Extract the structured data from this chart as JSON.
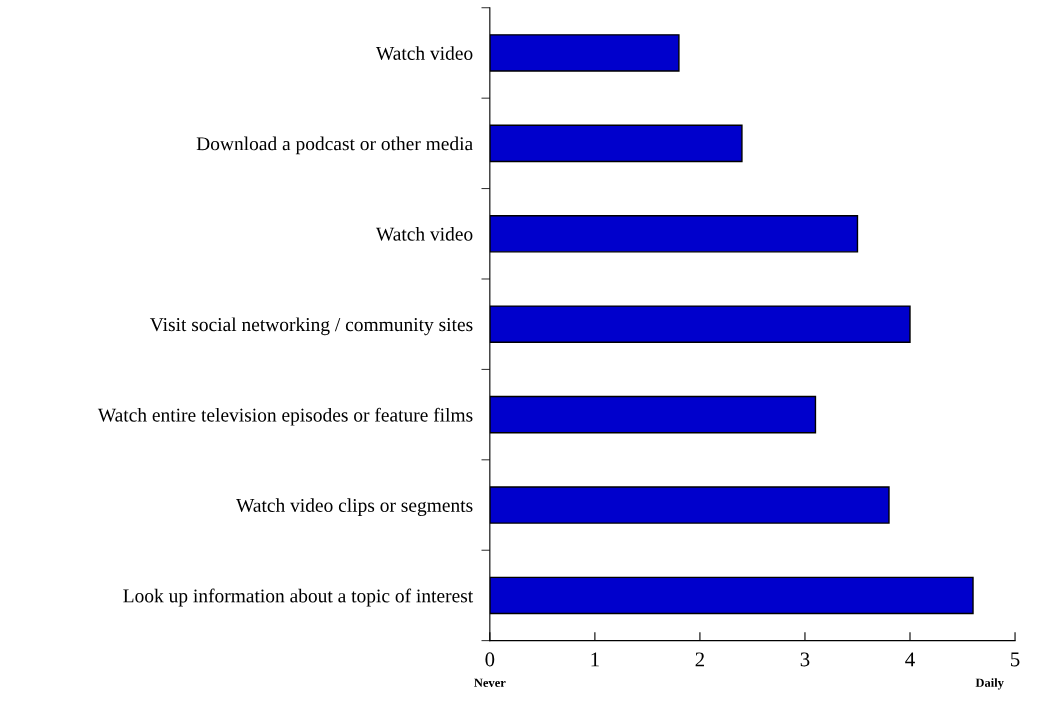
{
  "chart_data": {
    "type": "bar",
    "orientation": "horizontal",
    "categories": [
      "Watch video",
      "Download a podcast or other media",
      "Watch video",
      "Visit social networking / community sites",
      "Watch entire television episodes or feature films",
      "Watch video clips or segments",
      "Look up information about a topic of interest"
    ],
    "values": [
      1.8,
      2.4,
      3.5,
      4.0,
      3.1,
      3.8,
      4.6
    ],
    "color": "#0000cc",
    "xlim": [
      0,
      5
    ],
    "xticks": [
      0,
      1,
      2,
      3,
      4,
      5
    ],
    "annotations": [
      "Never",
      "Daily"
    ],
    "grid": false,
    "legend": false
  }
}
